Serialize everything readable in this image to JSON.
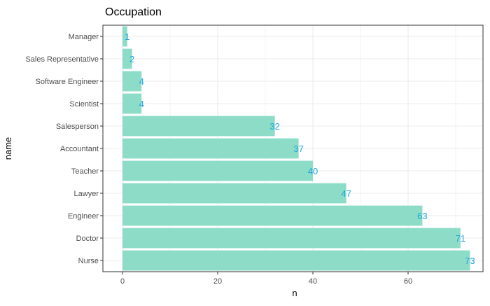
{
  "chart_data": {
    "type": "bar",
    "orientation": "horizontal",
    "title": "Occupation",
    "xlabel": "n",
    "ylabel": "name",
    "categories": [
      "Manager",
      "Sales Representative",
      "Software Engineer",
      "Scientist",
      "Salesperson",
      "Accountant",
      "Teacher",
      "Lawyer",
      "Engineer",
      "Doctor",
      "Nurse"
    ],
    "values": [
      1,
      2,
      4,
      4,
      32,
      37,
      40,
      47,
      63,
      71,
      73
    ],
    "xlim": [
      0,
      76.6
    ],
    "xticks": [
      0,
      20,
      40,
      60
    ],
    "grid": true,
    "legend": "none",
    "colors": {
      "bar": "#8cdcc8",
      "label": "#1fa5dc",
      "grid": "#ebebeb",
      "panel_border": "#333333",
      "axis_text": "#4d4d4d",
      "title": "#000000"
    }
  }
}
